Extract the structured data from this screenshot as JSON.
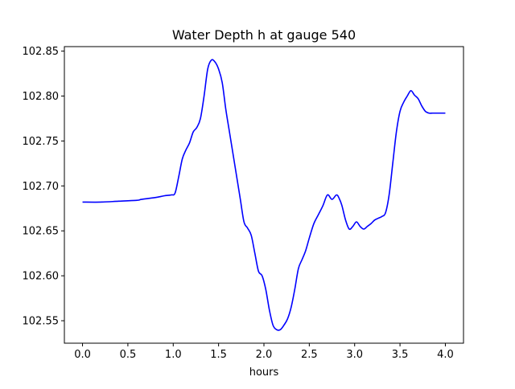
{
  "chart_data": {
    "type": "line",
    "title": "Water Depth h at gauge 540",
    "xlabel": "hours",
    "ylabel": "",
    "xlim": [
      -0.2,
      4.2
    ],
    "ylim": [
      102.525,
      102.855
    ],
    "xticks": [
      0.0,
      0.5,
      1.0,
      1.5,
      2.0,
      2.5,
      3.0,
      3.5,
      4.0
    ],
    "xtick_labels": [
      "0.0",
      "0.5",
      "1.0",
      "1.5",
      "2.0",
      "2.5",
      "3.0",
      "3.5",
      "4.0"
    ],
    "yticks": [
      102.55,
      102.6,
      102.65,
      102.7,
      102.75,
      102.8,
      102.85
    ],
    "ytick_labels": [
      "102.55",
      "102.60",
      "102.65",
      "102.70",
      "102.75",
      "102.80",
      "102.85"
    ],
    "grid": false,
    "series": [
      {
        "color": "#0000ff",
        "x": [
          0.0,
          0.2,
          0.4,
          0.6,
          0.65,
          0.8,
          0.9,
          0.98,
          1.02,
          1.06,
          1.1,
          1.14,
          1.18,
          1.22,
          1.26,
          1.3,
          1.34,
          1.38,
          1.42,
          1.46,
          1.5,
          1.54,
          1.58,
          1.62,
          1.66,
          1.7,
          1.74,
          1.78,
          1.82,
          1.86,
          1.9,
          1.94,
          1.98,
          2.02,
          2.06,
          2.1,
          2.14,
          2.18,
          2.22,
          2.26,
          2.3,
          2.34,
          2.38,
          2.42,
          2.46,
          2.5,
          2.55,
          2.6,
          2.65,
          2.7,
          2.75,
          2.8,
          2.83,
          2.86,
          2.9,
          2.94,
          2.98,
          3.02,
          3.06,
          3.1,
          3.14,
          3.18,
          3.22,
          3.26,
          3.3,
          3.34,
          3.38,
          3.42,
          3.46,
          3.5,
          3.54,
          3.58,
          3.62,
          3.66,
          3.7,
          3.74,
          3.78,
          3.82,
          3.86,
          3.9,
          3.94,
          3.98,
          4.0
        ],
        "y": [
          102.682,
          102.682,
          102.683,
          102.684,
          102.685,
          102.687,
          102.689,
          102.69,
          102.692,
          102.71,
          102.73,
          102.74,
          102.748,
          102.76,
          102.765,
          102.775,
          102.8,
          102.83,
          102.84,
          102.838,
          102.83,
          102.815,
          102.785,
          102.76,
          102.735,
          102.71,
          102.685,
          102.66,
          102.653,
          102.645,
          102.625,
          102.605,
          102.6,
          102.585,
          102.562,
          102.545,
          102.54,
          102.54,
          102.545,
          102.552,
          102.565,
          102.585,
          102.608,
          102.618,
          102.628,
          102.642,
          102.658,
          102.668,
          102.678,
          102.69,
          102.685,
          102.69,
          102.686,
          102.678,
          102.662,
          102.652,
          102.655,
          102.66,
          102.655,
          102.652,
          102.655,
          102.658,
          102.662,
          102.664,
          102.666,
          102.67,
          102.69,
          102.725,
          102.76,
          102.783,
          102.793,
          102.8,
          102.806,
          102.801,
          102.797,
          102.789,
          102.783,
          102.781,
          102.781,
          102.781,
          102.781,
          102.781,
          102.781
        ]
      }
    ]
  }
}
